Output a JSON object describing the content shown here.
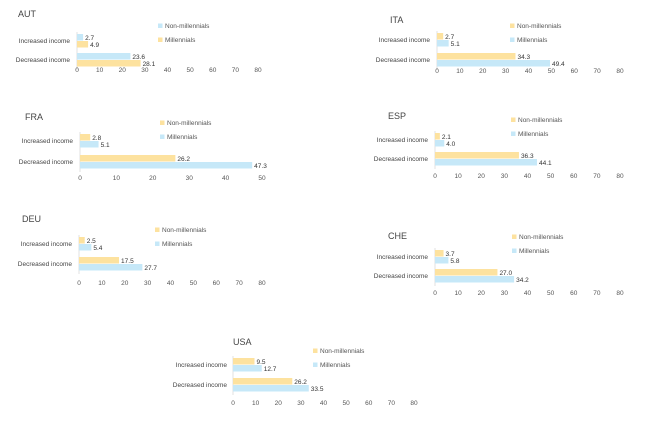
{
  "colors": {
    "non_millennials": "#fde29f",
    "millennials": "#c6e8f8",
    "axis": "#d9d9d9"
  },
  "chart_data": [
    {
      "type": "bar",
      "orientation": "horizontal",
      "title": "AUT",
      "categories": [
        "Increased income",
        "Decreased income"
      ],
      "series": [
        {
          "name": "Non-millennials",
          "color_key": "millennials",
          "values": [
            2.7,
            23.6
          ]
        },
        {
          "name": "Millennials",
          "color_key": "non_millennials",
          "values": [
            4.9,
            28.1
          ]
        }
      ],
      "xlim": [
        0,
        80
      ],
      "xticks": [
        "0",
        "10",
        "20",
        "30",
        "40",
        "50",
        "60",
        "70",
        "80"
      ],
      "legend": "right"
    },
    {
      "type": "bar",
      "orientation": "horizontal",
      "title": "ITA",
      "categories": [
        "Increased income",
        "Decreased income"
      ],
      "series": [
        {
          "name": "Non-millennials",
          "color_key": "non_millennials",
          "values": [
            2.7,
            34.3
          ]
        },
        {
          "name": "Millennials",
          "color_key": "millennials",
          "values": [
            5.1,
            49.4
          ]
        }
      ],
      "xlim": [
        0,
        80
      ],
      "xticks": [
        "0",
        "10",
        "20",
        "30",
        "40",
        "50",
        "60",
        "70",
        "80"
      ],
      "legend": "right"
    },
    {
      "type": "bar",
      "orientation": "horizontal",
      "title": "FRA",
      "categories": [
        "Increased income",
        "Decreased income"
      ],
      "series": [
        {
          "name": "Non-millennials",
          "color_key": "non_millennials",
          "values": [
            2.8,
            26.2
          ]
        },
        {
          "name": "Millennials",
          "color_key": "millennials",
          "values": [
            5.1,
            47.3
          ]
        }
      ],
      "xlim": [
        0,
        50
      ],
      "xticks": [
        "0",
        "10",
        "20",
        "30",
        "40",
        "50"
      ],
      "legend": "right"
    },
    {
      "type": "bar",
      "orientation": "horizontal",
      "title": "ESP",
      "categories": [
        "Increased income",
        "Decreased income"
      ],
      "series": [
        {
          "name": "Non-millennials",
          "color_key": "non_millennials",
          "values": [
            2.1,
            36.3
          ]
        },
        {
          "name": "Millennials",
          "color_key": "millennials",
          "values": [
            4.0,
            44.1
          ]
        }
      ],
      "xlim": [
        0,
        80
      ],
      "xticks": [
        "0",
        "10",
        "20",
        "30",
        "40",
        "50",
        "60",
        "70",
        "80"
      ],
      "legend": "right"
    },
    {
      "type": "bar",
      "orientation": "horizontal",
      "title": "DEU",
      "categories": [
        "Increased income",
        "Decreased income"
      ],
      "series": [
        {
          "name": "Non-millennials",
          "color_key": "non_millennials",
          "values": [
            2.5,
            17.5
          ]
        },
        {
          "name": "Millennials",
          "color_key": "millennials",
          "values": [
            5.4,
            27.7
          ]
        }
      ],
      "xlim": [
        0,
        80
      ],
      "xticks": [
        "0",
        "10",
        "20",
        "30",
        "40",
        "50",
        "60",
        "70",
        "80"
      ],
      "legend": "right"
    },
    {
      "type": "bar",
      "orientation": "horizontal",
      "title": "CHE",
      "categories": [
        "Increased income",
        "Decreased income"
      ],
      "series": [
        {
          "name": "Non-millennials",
          "color_key": "non_millennials",
          "values": [
            3.7,
            27.0
          ]
        },
        {
          "name": "Millennials",
          "color_key": "millennials",
          "values": [
            5.8,
            34.2
          ]
        }
      ],
      "xlim": [
        0,
        80
      ],
      "xticks": [
        "0",
        "10",
        "20",
        "30",
        "40",
        "50",
        "60",
        "70",
        "80"
      ],
      "legend": "right"
    },
    {
      "type": "bar",
      "orientation": "horizontal",
      "title": "USA",
      "categories": [
        "Increased income",
        "Decreased income"
      ],
      "series": [
        {
          "name": "Non-millennials",
          "color_key": "non_millennials",
          "values": [
            9.5,
            26.2
          ]
        },
        {
          "name": "Millennials",
          "color_key": "millennials",
          "values": [
            12.7,
            33.5
          ]
        }
      ],
      "xlim": [
        0,
        80
      ],
      "xticks": [
        "0",
        "10",
        "20",
        "30",
        "40",
        "50",
        "60",
        "70",
        "80"
      ],
      "legend": "right"
    }
  ],
  "value_labels": [
    [
      [
        "2.7",
        "23.6"
      ],
      [
        "4.9",
        "28.1"
      ]
    ],
    [
      [
        "2.7",
        "34.3"
      ],
      [
        "5.1",
        "49.4"
      ]
    ],
    [
      [
        "2.8",
        "26.2"
      ],
      [
        "5.1",
        "47.3"
      ]
    ],
    [
      [
        "2.1",
        "36.3"
      ],
      [
        "4.0",
        "44.1"
      ]
    ],
    [
      [
        "2.5",
        "17.5"
      ],
      [
        "5.4",
        "27.7"
      ]
    ],
    [
      [
        "3.7",
        "27.0"
      ],
      [
        "5.8",
        "34.2"
      ]
    ],
    [
      [
        "9.5",
        "26.2"
      ],
      [
        "12.7",
        "33.5"
      ]
    ]
  ]
}
